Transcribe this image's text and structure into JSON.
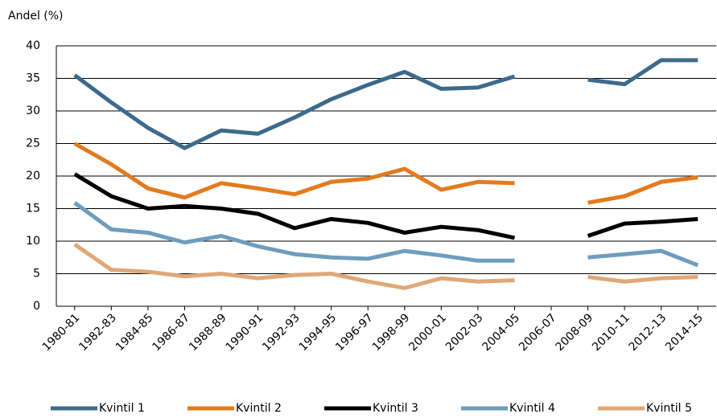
{
  "chart_data": {
    "type": "line",
    "y_label": "Andel (%)",
    "categories": [
      "1980-81",
      "1982-83",
      "1984-85",
      "1986-87",
      "1988-89",
      "1990-91",
      "1992-93",
      "1994-95",
      "1996-97",
      "1998-99",
      "2000-01",
      "2002-03",
      "2004-05",
      "2006-07",
      "2008-09",
      "2010-11",
      "2012-13",
      "2014-15"
    ],
    "series": [
      {
        "name": "Kvintil 1",
        "color": "#3c6a8d",
        "values": [
          35.5,
          31.3,
          27.4,
          24.3,
          27,
          26.5,
          29,
          31.8,
          34,
          36,
          33.4,
          33.6,
          35.3,
          null,
          34.8,
          34.1,
          37.8,
          37.8
        ]
      },
      {
        "name": "Kvintil 2",
        "color": "#e37b1e",
        "values": [
          25,
          21.8,
          18.1,
          16.7,
          18.9,
          18.1,
          17.2,
          19.1,
          19.6,
          21.1,
          17.9,
          19.1,
          18.9,
          null,
          15.9,
          16.9,
          19.1,
          19.8
        ]
      },
      {
        "name": "Kvintil 3",
        "color": "#000000",
        "values": [
          20.3,
          16.9,
          15,
          15.4,
          15,
          14.2,
          12,
          13.4,
          12.8,
          11.3,
          12.2,
          11.7,
          10.5,
          null,
          10.8,
          12.7,
          13,
          13.4
        ]
      },
      {
        "name": "Kvintil 4",
        "color": "#6e9dbe",
        "values": [
          15.9,
          11.8,
          11.3,
          9.8,
          10.8,
          9.2,
          8,
          7.5,
          7.3,
          8.5,
          7.8,
          7,
          7,
          null,
          7.5,
          8,
          8.5,
          6.3
        ]
      },
      {
        "name": "Kvintil 5",
        "color": "#e0a877",
        "values": [
          9.5,
          5.6,
          5.3,
          4.6,
          5,
          4.3,
          4.8,
          5,
          3.8,
          2.8,
          4.3,
          3.8,
          4,
          null,
          4.5,
          3.8,
          4.3,
          4.5
        ]
      }
    ],
    "ylim": [
      0,
      40
    ],
    "yticks": [
      0,
      5,
      10,
      15,
      20,
      25,
      30,
      35,
      40
    ],
    "grid": true
  }
}
